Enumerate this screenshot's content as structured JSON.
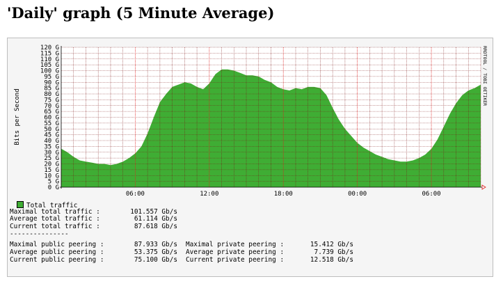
{
  "page": {
    "title": "'Daily' graph (5 Minute Average)"
  },
  "chart_data": {
    "type": "area",
    "title": "",
    "ylabel": "Bits per Second",
    "xlabel": "",
    "ylim": [
      0,
      120
    ],
    "y_unit": "G",
    "y_ticks": [
      "0",
      "5",
      "10",
      "15",
      "20",
      "25",
      "30",
      "35",
      "40",
      "45",
      "50",
      "55",
      "60",
      "65",
      "70",
      "75",
      "80",
      "85",
      "90",
      "95",
      "100",
      "105",
      "110",
      "115",
      "120"
    ],
    "x_range": [
      0,
      34
    ],
    "x_ticks": [
      {
        "label": "06:00",
        "hour": 6
      },
      {
        "label": "12:00",
        "hour": 12
      },
      {
        "label": "18:00",
        "hour": 18
      },
      {
        "label": "00:00",
        "hour": 24
      },
      {
        "label": "06:00",
        "hour": 30
      }
    ],
    "grid": true,
    "watermark": "RRDTOOL / TOBI OETIKER",
    "color": "#3fad34",
    "series": [
      {
        "name": "Total traffic",
        "x": [
          0,
          0.5,
          1,
          1.5,
          2,
          2.5,
          3,
          3.5,
          4,
          4.5,
          5,
          5.5,
          6,
          6.5,
          7,
          7.5,
          8,
          8.5,
          9,
          9.5,
          10,
          10.5,
          11,
          11.5,
          12,
          12.5,
          13,
          13.5,
          14,
          14.5,
          15,
          15.5,
          16,
          16.5,
          17,
          17.5,
          18,
          18.5,
          19,
          19.5,
          20,
          20.5,
          21,
          21.5,
          22,
          22.5,
          23,
          23.5,
          24,
          24.5,
          25,
          25.5,
          26,
          26.5,
          27,
          27.5,
          28,
          28.5,
          29,
          29.5,
          30,
          30.5,
          31,
          31.5,
          32,
          32.5,
          33,
          33.5,
          34
        ],
        "values": [
          33,
          30,
          26,
          23,
          22,
          21,
          20,
          20,
          19,
          20,
          22,
          25,
          29,
          35,
          46,
          60,
          73,
          80,
          86,
          88,
          90,
          89,
          86,
          84,
          89,
          97,
          101,
          101,
          100,
          98,
          96,
          96,
          95,
          92,
          90,
          86,
          84,
          83,
          85,
          84,
          86,
          86,
          85,
          79,
          68,
          58,
          50,
          44,
          38,
          34,
          31,
          28,
          26,
          24,
          23,
          22,
          22,
          23,
          25,
          28,
          33,
          41,
          52,
          63,
          72,
          79,
          83,
          85,
          88
        ]
      }
    ]
  },
  "legend": {
    "label": "Total traffic",
    "color": "#3fad34"
  },
  "stats": {
    "total": [
      {
        "label": "Maximal total traffic :",
        "value": "101.557 Gb/s"
      },
      {
        "label": "Average total traffic :",
        "value": "61.114 Gb/s"
      },
      {
        "label": "Current total traffic :",
        "value": "87.618 Gb/s"
      }
    ],
    "separator": "---------------",
    "peering": [
      {
        "public_label": "Maximal public peering :",
        "public_value": "87.933 Gb/s",
        "private_label": "Maximal private peering :",
        "private_value": "15.412 Gb/s"
      },
      {
        "public_label": "Average public peering :",
        "public_value": "53.375 Gb/s",
        "private_label": "Average private peering :",
        "private_value": "7.739 Gb/s"
      },
      {
        "public_label": "Current public peering :",
        "public_value": "75.100 Gb/s",
        "private_label": "Current private peering :",
        "private_value": "12.518 Gb/s"
      }
    ]
  }
}
